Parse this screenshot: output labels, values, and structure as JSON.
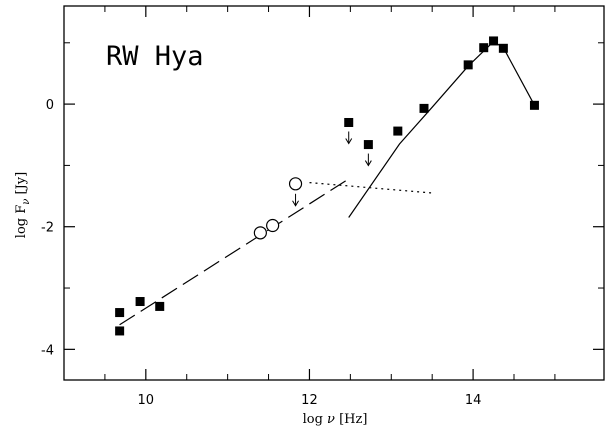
{
  "chart_data": {
    "type": "scatter",
    "title": "RW Hya",
    "xlabel_text": "log ",
    "xlabel_symbol": "ν",
    "xlabel_unit": " [Hz]",
    "ylabel_text": "log F",
    "ylabel_subscript": "ν",
    "ylabel_unit": " [Jy]",
    "xlim": [
      9.0,
      15.6
    ],
    "ylim": [
      -4.5,
      1.6
    ],
    "x_ticks_major": [
      10,
      12,
      14
    ],
    "x_tick_labels": [
      "10",
      "12",
      "14"
    ],
    "x_ticks_minor": [
      9.5,
      10.5,
      11,
      11.5,
      12.5,
      13,
      13.5,
      14.5,
      15
    ],
    "y_ticks_major": [
      -4,
      -2,
      0
    ],
    "y_tick_labels": [
      "-4",
      "-2",
      "0"
    ],
    "y_ticks_minor": [
      -3,
      -1,
      1
    ],
    "grid": false,
    "series": [
      {
        "marker": "filled-square",
        "points": [
          {
            "x": 9.68,
            "y": -3.4
          },
          {
            "x": 9.68,
            "y": -3.7
          },
          {
            "x": 9.93,
            "y": -3.22
          },
          {
            "x": 10.17,
            "y": -3.3
          },
          {
            "x": 13.08,
            "y": -0.44
          },
          {
            "x": 13.4,
            "y": -0.07
          },
          {
            "x": 13.94,
            "y": 0.64
          },
          {
            "x": 14.13,
            "y": 0.92
          },
          {
            "x": 14.25,
            "y": 1.03
          },
          {
            "x": 14.37,
            "y": 0.91
          },
          {
            "x": 14.75,
            "y": -0.02
          }
        ]
      },
      {
        "marker": "filled-square-upper-limit",
        "points": [
          {
            "x": 12.48,
            "y": -0.3
          },
          {
            "x": 12.72,
            "y": -0.66
          }
        ]
      },
      {
        "marker": "open-circle",
        "points": [
          {
            "x": 11.4,
            "y": -2.1
          },
          {
            "x": 11.55,
            "y": -1.98
          }
        ]
      },
      {
        "marker": "open-circle-upper-limit",
        "points": [
          {
            "x": 11.83,
            "y": -1.3
          }
        ]
      }
    ],
    "curves": [
      {
        "style": "dashed",
        "points": [
          [
            9.68,
            -3.6
          ],
          [
            12.48,
            -1.22
          ]
        ]
      },
      {
        "style": "solid",
        "points": [
          [
            12.48,
            -1.85
          ],
          [
            13.1,
            -0.65
          ],
          [
            13.5,
            -0.05
          ],
          [
            13.94,
            0.62
          ],
          [
            14.25,
            1.02
          ],
          [
            14.37,
            0.92
          ],
          [
            14.75,
            -0.02
          ]
        ]
      },
      {
        "style": "dotted",
        "points": [
          [
            12.0,
            -1.28
          ],
          [
            13.5,
            -1.45
          ]
        ]
      }
    ]
  }
}
